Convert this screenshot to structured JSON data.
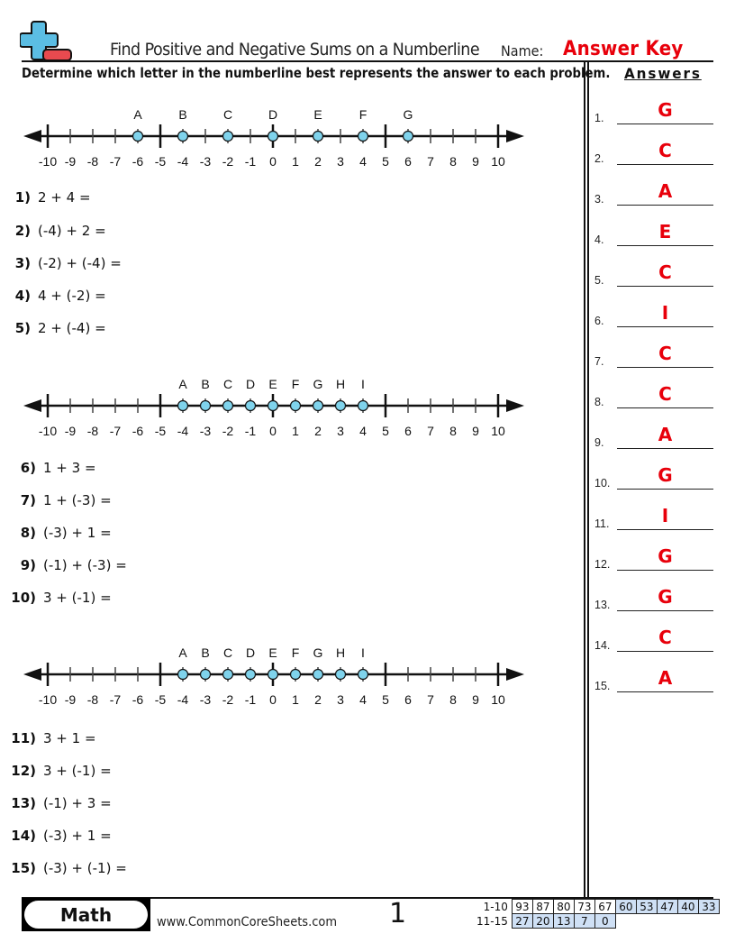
{
  "header": {
    "title": "Find Positive and Negative Sums on a Numberline",
    "name_label": "Name:",
    "name_value": "Answer Key",
    "instructions": "Determine which letter in the numberline best represents the answer to each problem.",
    "answers_heading": "Answers"
  },
  "numberlines": [
    {
      "tick_labels": [
        "-10",
        "-9",
        "-8",
        "-7",
        "-6",
        "-5",
        "-4",
        "-3",
        "-2",
        "-1",
        "0",
        "1",
        "2",
        "3",
        "4",
        "5",
        "6",
        "7",
        "8",
        "9",
        "10"
      ],
      "points": [
        {
          "letter": "A",
          "value": -6
        },
        {
          "letter": "B",
          "value": -4
        },
        {
          "letter": "C",
          "value": -2
        },
        {
          "letter": "D",
          "value": 0
        },
        {
          "letter": "E",
          "value": 2
        },
        {
          "letter": "F",
          "value": 4
        },
        {
          "letter": "G",
          "value": 6
        }
      ]
    },
    {
      "tick_labels": [
        "-10",
        "-9",
        "-8",
        "-7",
        "-6",
        "-5",
        "-4",
        "-3",
        "-2",
        "-1",
        "0",
        "1",
        "2",
        "3",
        "4",
        "5",
        "6",
        "7",
        "8",
        "9",
        "10"
      ],
      "points": [
        {
          "letter": "A",
          "value": -4
        },
        {
          "letter": "B",
          "value": -3
        },
        {
          "letter": "C",
          "value": -2
        },
        {
          "letter": "D",
          "value": -1
        },
        {
          "letter": "E",
          "value": 0
        },
        {
          "letter": "F",
          "value": 1
        },
        {
          "letter": "G",
          "value": 2
        },
        {
          "letter": "H",
          "value": 3
        },
        {
          "letter": "I",
          "value": 4
        }
      ]
    },
    {
      "tick_labels": [
        "-10",
        "-9",
        "-8",
        "-7",
        "-6",
        "-5",
        "-4",
        "-3",
        "-2",
        "-1",
        "0",
        "1",
        "2",
        "3",
        "4",
        "5",
        "6",
        "7",
        "8",
        "9",
        "10"
      ],
      "points": [
        {
          "letter": "A",
          "value": -4
        },
        {
          "letter": "B",
          "value": -3
        },
        {
          "letter": "C",
          "value": -2
        },
        {
          "letter": "D",
          "value": -1
        },
        {
          "letter": "E",
          "value": 0
        },
        {
          "letter": "F",
          "value": 1
        },
        {
          "letter": "G",
          "value": 2
        },
        {
          "letter": "H",
          "value": 3
        },
        {
          "letter": "I",
          "value": 4
        }
      ]
    }
  ],
  "questions": [
    {
      "num": "1)",
      "text": "2 + 4 ="
    },
    {
      "num": "2)",
      "text": "(-4) + 2 ="
    },
    {
      "num": "3)",
      "text": "(-2) + (-4) ="
    },
    {
      "num": "4)",
      "text": "4 + (-2) ="
    },
    {
      "num": "5)",
      "text": "2 + (-4) ="
    },
    {
      "num": "6)",
      "text": "1 + 3 ="
    },
    {
      "num": "7)",
      "text": "1 + (-3) ="
    },
    {
      "num": "8)",
      "text": "(-3) + 1 ="
    },
    {
      "num": "9)",
      "text": "(-1) + (-3) ="
    },
    {
      "num": "10)",
      "text": "3 + (-1) ="
    },
    {
      "num": "11)",
      "text": "3 + 1 ="
    },
    {
      "num": "12)",
      "text": "3 + (-1) ="
    },
    {
      "num": "13)",
      "text": "(-1) + 3 ="
    },
    {
      "num": "14)",
      "text": "(-3) + 1 ="
    },
    {
      "num": "15)",
      "text": "(-3) + (-1) ="
    }
  ],
  "answers": [
    {
      "num": "1.",
      "letter": "G"
    },
    {
      "num": "2.",
      "letter": "C"
    },
    {
      "num": "3.",
      "letter": "A"
    },
    {
      "num": "4.",
      "letter": "E"
    },
    {
      "num": "5.",
      "letter": "C"
    },
    {
      "num": "6.",
      "letter": "I"
    },
    {
      "num": "7.",
      "letter": "C"
    },
    {
      "num": "8.",
      "letter": "C"
    },
    {
      "num": "9.",
      "letter": "A"
    },
    {
      "num": "10.",
      "letter": "G"
    },
    {
      "num": "11.",
      "letter": "I"
    },
    {
      "num": "12.",
      "letter": "G"
    },
    {
      "num": "13.",
      "letter": "G"
    },
    {
      "num": "14.",
      "letter": "C"
    },
    {
      "num": "15.",
      "letter": "A"
    }
  ],
  "footer": {
    "subject": "Math",
    "website": "www.CommonCoreSheets.com",
    "page_number": "1",
    "score_rows": [
      {
        "label": "1-10",
        "values": [
          "93",
          "87",
          "80",
          "73",
          "67",
          "60",
          "53",
          "47",
          "40",
          "33"
        ]
      },
      {
        "label": "11-15",
        "values": [
          "27",
          "20",
          "13",
          "7",
          "0"
        ]
      }
    ]
  },
  "colors": {
    "answer_red": "#e8000b",
    "point_fill": "#7fd3ec",
    "score_blue": "#cfe0f5",
    "logo_plus": "#5bbde3",
    "logo_minus": "#e84a4f"
  }
}
